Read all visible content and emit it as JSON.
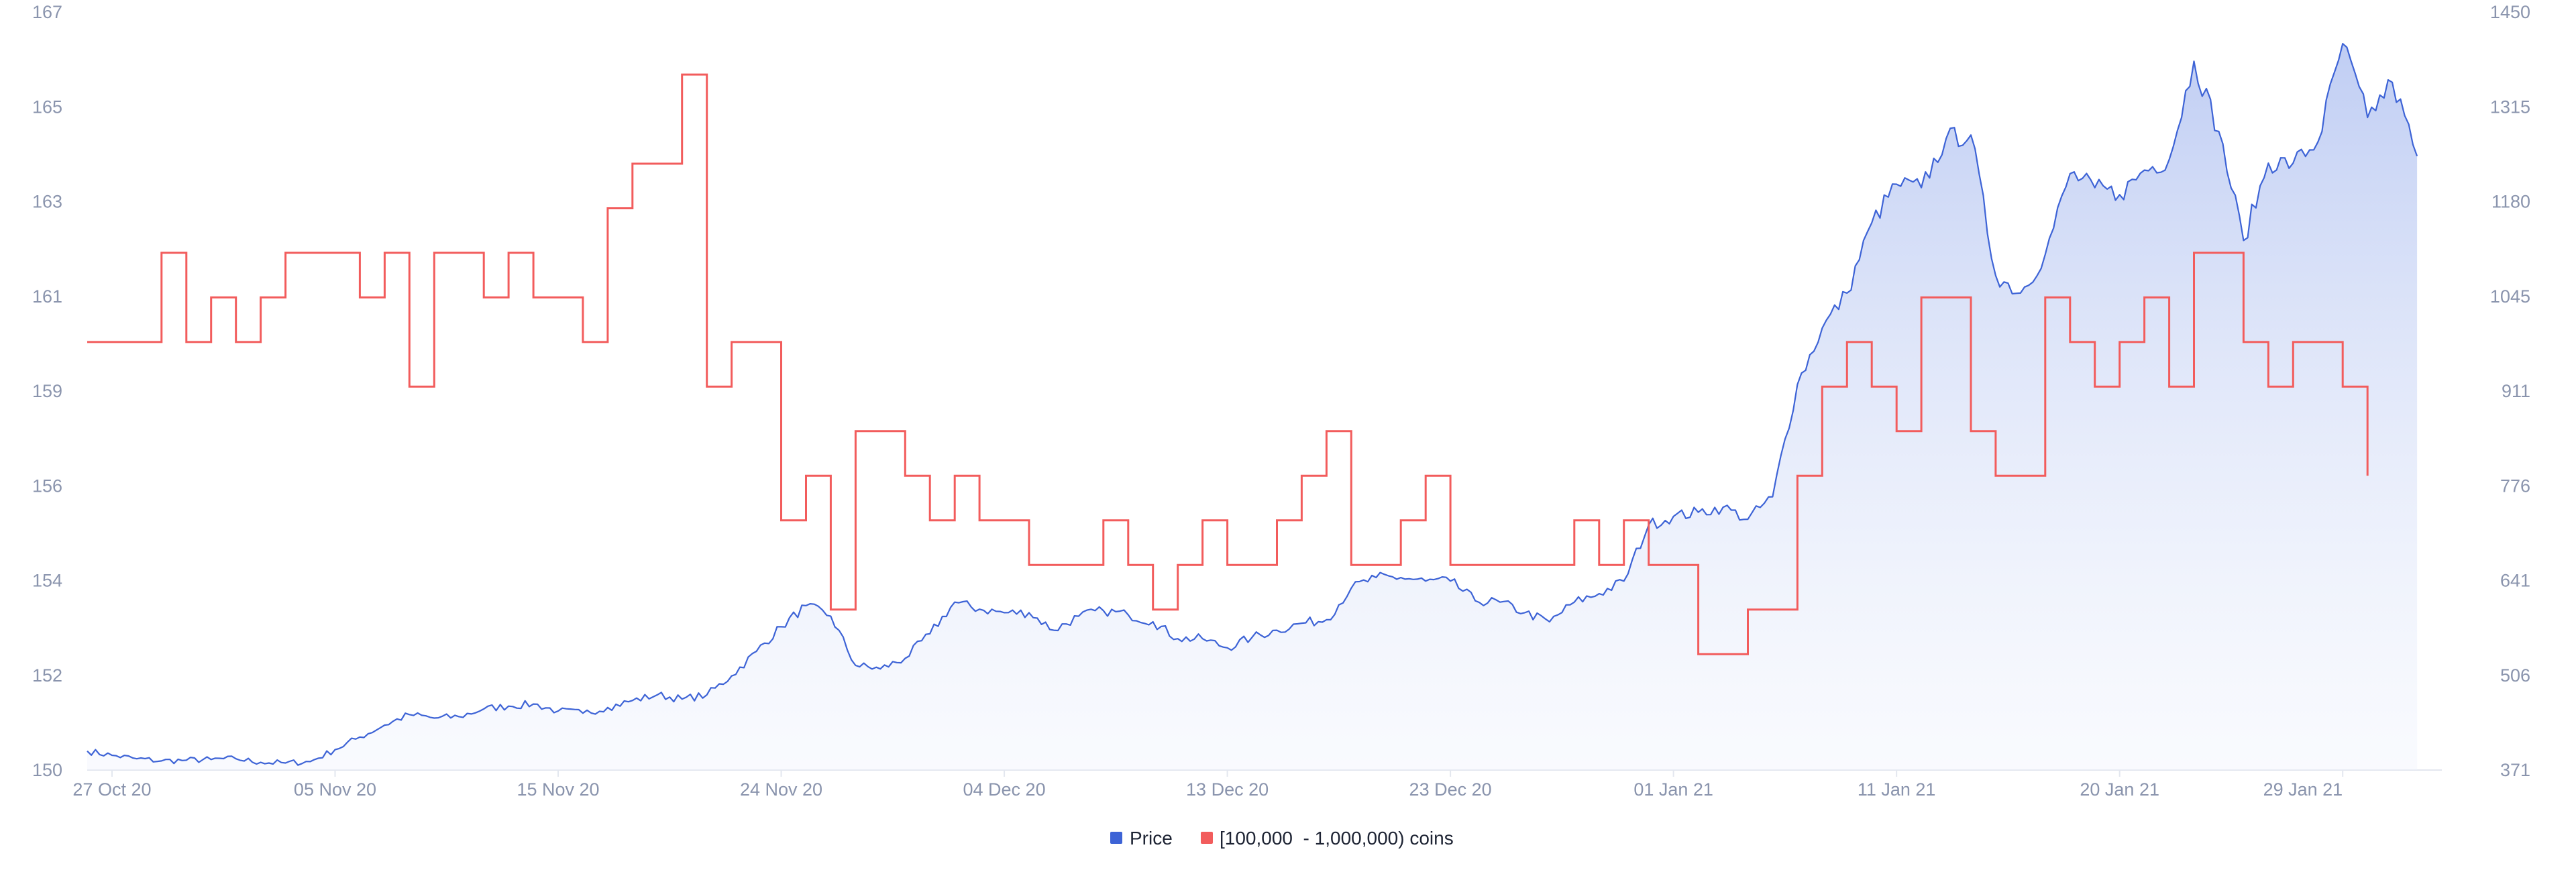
{
  "chart_data": {
    "type": "line",
    "x_ticks": [
      "27 Oct 20",
      "05 Nov 20",
      "15 Nov 20",
      "24 Nov 20",
      "04 Dec 20",
      "13 Dec 20",
      "23 Dec 20",
      "01 Jan 21",
      "11 Jan 21",
      "20 Jan 21",
      "29 Jan 21"
    ],
    "y_left_ticks": [
      "150",
      "152",
      "154",
      "156",
      "159",
      "161",
      "163",
      "165",
      "167"
    ],
    "y_left_range": [
      150,
      167
    ],
    "y_right_ticks": [
      "371",
      "506",
      "641",
      "776",
      "911",
      "1045",
      "1180",
      "1315",
      "1450"
    ],
    "y_right_range": [
      371,
      1450
    ],
    "grid": false,
    "legend_position": "bottom-center",
    "series": [
      {
        "name": "Price",
        "axis": "right",
        "style": "area",
        "color": "#3d63d6",
        "points": [
          [
            "2020-10-26",
            398
          ],
          [
            "2020-10-27",
            392
          ],
          [
            "2020-10-28",
            387
          ],
          [
            "2020-10-29",
            384
          ],
          [
            "2020-10-30",
            385
          ],
          [
            "2020-10-31",
            386
          ],
          [
            "2020-11-01",
            387
          ],
          [
            "2020-11-02",
            382
          ],
          [
            "2020-11-03",
            381
          ],
          [
            "2020-11-04",
            383
          ],
          [
            "2020-11-05",
            400
          ],
          [
            "2020-11-06",
            418
          ],
          [
            "2020-11-07",
            435
          ],
          [
            "2020-11-08",
            450
          ],
          [
            "2020-11-09",
            445
          ],
          [
            "2020-11-10",
            447
          ],
          [
            "2020-11-11",
            458
          ],
          [
            "2020-11-12",
            462
          ],
          [
            "2020-11-13",
            465
          ],
          [
            "2020-11-14",
            455
          ],
          [
            "2020-11-15",
            452
          ],
          [
            "2020-11-16",
            460
          ],
          [
            "2020-11-17",
            470
          ],
          [
            "2020-11-18",
            478
          ],
          [
            "2020-11-19",
            472
          ],
          [
            "2020-11-20",
            478
          ],
          [
            "2020-11-21",
            505
          ],
          [
            "2020-11-22",
            540
          ],
          [
            "2020-11-23",
            575
          ],
          [
            "2020-11-24",
            605
          ],
          [
            "2020-11-25",
            590
          ],
          [
            "2020-11-26",
            520
          ],
          [
            "2020-11-27",
            515
          ],
          [
            "2020-11-28",
            530
          ],
          [
            "2020-11-29",
            565
          ],
          [
            "2020-11-30",
            610
          ],
          [
            "2020-12-01",
            600
          ],
          [
            "2020-12-02",
            595
          ],
          [
            "2020-12-03",
            595
          ],
          [
            "2020-12-04",
            570
          ],
          [
            "2020-12-05",
            590
          ],
          [
            "2020-12-06",
            598
          ],
          [
            "2020-12-07",
            592
          ],
          [
            "2020-12-08",
            582
          ],
          [
            "2020-12-09",
            558
          ],
          [
            "2020-12-10",
            558
          ],
          [
            "2020-12-11",
            545
          ],
          [
            "2020-12-12",
            560
          ],
          [
            "2020-12-13",
            570
          ],
          [
            "2020-12-14",
            580
          ],
          [
            "2020-12-15",
            585
          ],
          [
            "2020-12-16",
            630
          ],
          [
            "2020-12-17",
            645
          ],
          [
            "2020-12-18",
            645
          ],
          [
            "2020-12-19",
            640
          ],
          [
            "2020-12-20",
            640
          ],
          [
            "2020-12-21",
            612
          ],
          [
            "2020-12-22",
            610
          ],
          [
            "2020-12-23",
            595
          ],
          [
            "2020-12-24",
            582
          ],
          [
            "2020-12-25",
            610
          ],
          [
            "2020-12-26",
            622
          ],
          [
            "2020-12-27",
            640
          ],
          [
            "2020-12-28",
            720
          ],
          [
            "2020-12-29",
            732
          ],
          [
            "2020-12-30",
            738
          ],
          [
            "2020-12-31",
            745
          ],
          [
            "2021-01-01",
            728
          ],
          [
            "2021-01-02",
            760
          ],
          [
            "2021-01-03",
            920
          ],
          [
            "2021-01-04",
            1000
          ],
          [
            "2021-01-05",
            1050
          ],
          [
            "2021-01-06",
            1150
          ],
          [
            "2021-01-07",
            1205
          ],
          [
            "2021-01-08",
            1200
          ],
          [
            "2021-01-09",
            1270
          ],
          [
            "2021-01-10",
            1275
          ],
          [
            "2021-01-11",
            1075
          ],
          [
            "2021-01-12",
            1050
          ],
          [
            "2021-01-13",
            1105
          ],
          [
            "2021-01-14",
            1220
          ],
          [
            "2021-01-15",
            1200
          ],
          [
            "2021-01-16",
            1190
          ],
          [
            "2021-01-17",
            1225
          ],
          [
            "2021-01-18",
            1240
          ],
          [
            "2021-01-19",
            1380
          ],
          [
            "2021-01-20",
            1280
          ],
          [
            "2021-01-21",
            1125
          ],
          [
            "2021-01-22",
            1235
          ],
          [
            "2021-01-23",
            1235
          ],
          [
            "2021-01-24",
            1265
          ],
          [
            "2021-01-25",
            1405
          ],
          [
            "2021-01-26",
            1300
          ],
          [
            "2021-01-27",
            1350
          ],
          [
            "2021-01-28",
            1245
          ]
        ]
      },
      {
        "name": "[100,000  - 1,000,000) coins",
        "axis": "left",
        "style": "step",
        "color": "#f25c5c",
        "points": [
          [
            "2020-10-26",
            159.6
          ],
          [
            "2020-10-29",
            161.6
          ],
          [
            "2020-10-30",
            159.6
          ],
          [
            "2020-10-31",
            160.6
          ],
          [
            "2020-11-01",
            159.6
          ],
          [
            "2020-11-02",
            160.6
          ],
          [
            "2020-11-03",
            161.6
          ],
          [
            "2020-11-06",
            160.6
          ],
          [
            "2020-11-07",
            161.6
          ],
          [
            "2020-11-08",
            158.6
          ],
          [
            "2020-11-09",
            161.6
          ],
          [
            "2020-11-11",
            160.6
          ],
          [
            "2020-11-12",
            161.6
          ],
          [
            "2020-11-13",
            160.6
          ],
          [
            "2020-11-15",
            159.6
          ],
          [
            "2020-11-16",
            162.6
          ],
          [
            "2020-11-17",
            163.6
          ],
          [
            "2020-11-19",
            165.6
          ],
          [
            "2020-11-20",
            158.6
          ],
          [
            "2020-11-21",
            159.6
          ],
          [
            "2020-11-23",
            155.6
          ],
          [
            "2020-11-24",
            156.6
          ],
          [
            "2020-11-25",
            153.6
          ],
          [
            "2020-11-26",
            157.6
          ],
          [
            "2020-11-28",
            156.6
          ],
          [
            "2020-11-29",
            155.6
          ],
          [
            "2020-11-30",
            156.6
          ],
          [
            "2020-12-01",
            155.6
          ],
          [
            "2020-12-03",
            154.6
          ],
          [
            "2020-12-06",
            155.6
          ],
          [
            "2020-12-07",
            154.6
          ],
          [
            "2020-12-08",
            153.6
          ],
          [
            "2020-12-09",
            154.6
          ],
          [
            "2020-12-10",
            155.6
          ],
          [
            "2020-12-11",
            154.6
          ],
          [
            "2020-12-13",
            155.6
          ],
          [
            "2020-12-14",
            156.6
          ],
          [
            "2020-12-15",
            157.6
          ],
          [
            "2020-12-16",
            154.6
          ],
          [
            "2020-12-18",
            155.6
          ],
          [
            "2020-12-19",
            156.6
          ],
          [
            "2020-12-20",
            154.6
          ],
          [
            "2020-12-25",
            155.6
          ],
          [
            "2020-12-26",
            154.6
          ],
          [
            "2020-12-27",
            155.6
          ],
          [
            "2020-12-28",
            154.6
          ],
          [
            "2020-12-30",
            152.6
          ],
          [
            "2021-01-01",
            153.6
          ],
          [
            "2021-01-03",
            156.6
          ],
          [
            "2021-01-04",
            158.6
          ],
          [
            "2021-01-05",
            159.6
          ],
          [
            "2021-01-06",
            158.6
          ],
          [
            "2021-01-07",
            157.6
          ],
          [
            "2021-01-08",
            160.6
          ],
          [
            "2021-01-10",
            157.6
          ],
          [
            "2021-01-11",
            156.6
          ],
          [
            "2021-01-13",
            160.6
          ],
          [
            "2021-01-14",
            159.6
          ],
          [
            "2021-01-15",
            158.6
          ],
          [
            "2021-01-16",
            159.6
          ],
          [
            "2021-01-17",
            160.6
          ],
          [
            "2021-01-18",
            158.6
          ],
          [
            "2021-01-19",
            161.6
          ],
          [
            "2021-01-21",
            159.6
          ],
          [
            "2021-01-22",
            158.6
          ],
          [
            "2021-01-23",
            159.6
          ],
          [
            "2021-01-25",
            158.6
          ],
          [
            "2021-01-26",
            156.6
          ],
          [
            "2021-01-26",
            156.6
          ]
        ]
      }
    ]
  }
}
